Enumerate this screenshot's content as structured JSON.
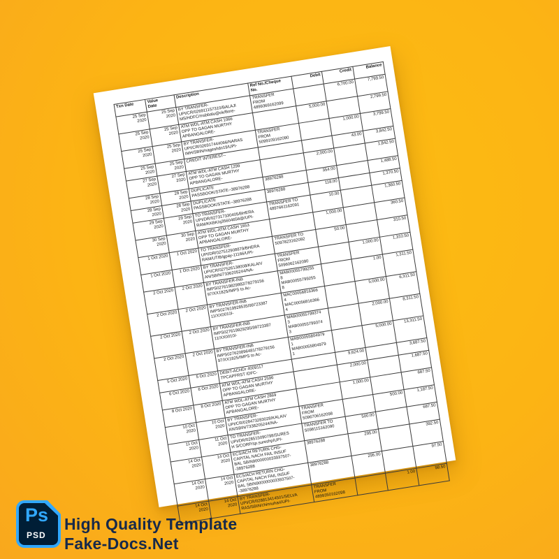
{
  "background": {
    "center_color": "#FDBD12",
    "edge_color": "#F9A81D"
  },
  "paper": {
    "rotation_deg": -9
  },
  "table": {
    "columns": [
      {
        "key": "txn_date",
        "label": "Txn Date",
        "header_align": "left",
        "cell_align": "right"
      },
      {
        "key": "value_date",
        "label": "Value\nDate",
        "header_align": "left",
        "cell_align": "right"
      },
      {
        "key": "description",
        "label": "Description",
        "header_align": "left",
        "cell_align": "left"
      },
      {
        "key": "ref_no",
        "label": "Ref No./Cheque\nNo.",
        "header_align": "left",
        "cell_align": "left"
      },
      {
        "key": "debit",
        "label": "Debit",
        "header_align": "right",
        "cell_align": "right"
      },
      {
        "key": "credit",
        "label": "Credit",
        "header_align": "right",
        "cell_align": "right"
      },
      {
        "key": "balance",
        "label": "Balance",
        "header_align": "right",
        "cell_align": "right"
      }
    ],
    "rows": [
      {
        "txn_date": "25 Sep\n2020",
        "value_date": "25 Sep\n2020",
        "description": "BY TRANSFER-\nUPI/CR/026911157310/BALAJI\nMS/HDFC/msbbalu@ok/Bore-",
        "ref_no": "TRANSFER\nFROM\n4899369162099",
        "debit": "",
        "credit": "6,700.00",
        "balance": "7,799.50"
      },
      {
        "txn_date": "25 Sep\n2020",
        "value_date": "25 Sep\n2020",
        "description": "ATM WDL-ATM CASH 1066\nOPP TO GAGAN MURTHY\nAPBANGALORE-",
        "ref_no": "",
        "debit": "5,000.00",
        "credit": "",
        "balance": "2,799.50"
      },
      {
        "txn_date": "25 Sep\n2020",
        "value_date": "25 Sep\n2020",
        "description": "BY TRANSFER-\nUPI/CR/026917444066/NARAS\nIMH/SBIN/nageshdn19/UPI-",
        "ref_no": "TRANSFER\nFROM\n5099109162090",
        "debit": "",
        "credit": "1,000.00",
        "balance": "3,799.50"
      },
      {
        "txn_date": "25 Sep\n2020",
        "value_date": "25 Sep\n2020",
        "description": "CREDIT INTEREST--",
        "ref_no": "",
        "debit": "",
        "credit": "43.00",
        "balance": "3,842.50"
      },
      {
        "txn_date": "27 Sep\n2020",
        "value_date": "27 Sep\n2020",
        "description": "ATM WDL-ATM CASH 1299\nOPP TO GAGAN MURTHY\nAPBANGALORE-",
        "ref_no": "",
        "debit": "2,000.00",
        "credit": "",
        "balance": "1,842.50"
      },
      {
        "txn_date": "28 Sep\n2020",
        "value_date": "28 Sep\n2020",
        "description": "DUPLICATE\nPASSBOOK/STATE--38976288",
        "ref_no": "38976288",
        "debit": "354.00",
        "credit": "",
        "balance": "1,488.50"
      },
      {
        "txn_date": "28 Sep\n2020",
        "value_date": "28 Sep\n2020",
        "description": "DUPLICATE\nPASSBOOK/STATE--38976288",
        "ref_no": "38976288",
        "debit": "118.00",
        "credit": "",
        "balance": "1,370.50"
      },
      {
        "txn_date": "29 Sep\n2020",
        "value_date": "29 Sep\n2020",
        "description": "TO TRANSFER-\nUPI/DR/027317330405/BHERA\nRAM/KKBK/q35604656@/UPI-",
        "ref_no": "TRANSFER TO\n4897661162091",
        "debit": "10.00",
        "credit": "",
        "balance": "1,360.50"
      },
      {
        "txn_date": "30 Sep\n2020",
        "value_date": "30 Sep\n2020",
        "description": "ATM WDL-ATM CASH 1653\nOPP TO GAGAN MURTHY\nAPBANGALORE-",
        "ref_no": "",
        "debit": "1,000.00",
        "credit": "",
        "balance": "360.50"
      },
      {
        "txn_date": "1 Oct 2020",
        "value_date": "1 Oct 2020",
        "description": "TO TRANSFER-\nUPI/DR/027512908879/BHERA\nRAM/UTIB/gpay-11166/UPI-",
        "ref_no": "TRANSFER TO\n5097823162092",
        "debit": "50.00",
        "credit": "",
        "balance": "310.50"
      },
      {
        "txn_date": "1 Oct 2020",
        "value_date": "1 Oct 2020",
        "description": "BY TRANSFER-\nUPI/CR/027526138008/KALAIV\nAN/SBIN/7336205244/NA-",
        "ref_no": "TRANSFER\nFROM\n5096062162090",
        "debit": "",
        "credit": "1,000.00",
        "balance": "1,310.50"
      },
      {
        "txn_date": "2 Oct 2020",
        "value_date": "2 Oct 2020",
        "description": "BY TRANSFER-INB\nIMPS027619829982/78279156\n97/XX1825/IMPS to Ac-",
        "ref_no": "MAB00055799255\n8\nMAB00055799255\n8",
        "debit": "",
        "credit": "1.00",
        "balance": "1,311.50"
      },
      {
        "txn_date": "2 Oct 2020",
        "value_date": "2 Oct 2020",
        "description": "BY TRANSFER-INB\nIMPS027619928535/99723387\n11/XX0010/-",
        "ref_no": "MAC00056816366\n4\nMAC00056816366\n4",
        "debit": "",
        "credit": "5,000.00",
        "balance": "6,311.50"
      },
      {
        "txn_date": "2 Oct 2020",
        "value_date": "2 Oct 2020",
        "description": "BY TRANSFER-INB\nIMPS027619929295/99723387\n11/XX0010/-",
        "ref_no": "MAB00055799374\n3\nMAB00055799374\n3",
        "debit": "",
        "credit": "2,000.00",
        "balance": "8,311.50"
      },
      {
        "txn_date": "2 Oct 2020",
        "value_date": "2 Oct 2020",
        "description": "BY TRANSFER-INB\nIMPS027620896481/78279156\n97/XX1825/IMPS to Ac-",
        "ref_no": "MAB00055804979\n1\nMAB00055804979\n1",
        "debit": "",
        "credit": "5,000.00",
        "balance": "13,311.50"
      },
      {
        "txn_date": "5 Oct 2020",
        "value_date": "5 Oct 2020",
        "description": "DEBIT-ACHDr 4009117\nTPCAPFRST IDFC-",
        "ref_no": "",
        "debit": "9,624.00",
        "credit": "",
        "balance": "3,687.50"
      },
      {
        "txn_date": "6 Oct 2020",
        "value_date": "6 Oct 2020",
        "description": "ATM WDL-ATM CASH 2596\nOPP TO GAGAN MURTHY\nAPBANGALORE-",
        "ref_no": "",
        "debit": "2,000.00",
        "credit": "",
        "balance": "1,687.50"
      },
      {
        "txn_date": "8 Oct 2020",
        "value_date": "8 Oct 2020",
        "description": "ATM WDL-ATM CASH 2869\nOPP TO GAGAN MURTHY\nAPBANGALORE-",
        "ref_no": "",
        "debit": "1,000.00",
        "credit": "",
        "balance": "687.50"
      },
      {
        "txn_date": "10 Oct\n2020",
        "value_date": "10 Oct\n2020",
        "description": "BY TRANSFER-\nUPI/CR/028473283028/KALAIV\nAN/SBIN/7338205244/NA-",
        "ref_no": "TRANSFER\nFROM\n5096706162098",
        "debit": "",
        "credit": "500.00",
        "balance": "1,187.50"
      },
      {
        "txn_date": "11 Oct\n2020",
        "value_date": "11 Oct\n2020",
        "description": "TO TRANSFER-\nUPI/DR/028515090798/SURES\nH S/CORP/sp.sureshp/UPI-",
        "ref_no": "TRANSFER TO\n5098115162090",
        "debit": "500.00",
        "credit": "",
        "balance": "687.50"
      },
      {
        "txn_date": "14 Oct\n2020",
        "value_date": "14 Oct\n2020",
        "description": "ECS/ACH RETURN CHG-\nCAPITAL NACH FAIL INSUF\nBAL SBIN9000000033937507-\n-38976288",
        "ref_no": "38976288",
        "debit": "295.00",
        "credit": "",
        "balance": "392.50"
      },
      {
        "txn_date": "14 Oct\n2020",
        "value_date": "14 Oct\n2020",
        "description": "ECS/ACH RETURN CHG-\nCAPITAL NACH FAIL INSUF\nBAL SBIN9000000033937507-\n-38976288",
        "ref_no": "38976288",
        "debit": "295.00",
        "credit": "",
        "balance": "97.50"
      },
      {
        "txn_date": "14 Oct\n2020",
        "value_date": "14 Oct\n2020",
        "description": "BY TRANSFER-\nUPI/CR/028813414501/SELVA\nRAS/SBIN/chinnuhari/UPI-",
        "ref_no": "TRANSFER\nFROM\n4899350162098",
        "debit": "",
        "credit": "1.00",
        "balance": "98.50"
      }
    ]
  },
  "footer": {
    "badge": {
      "app_label": "Ps",
      "format_label": "PSD",
      "accent_blue": "#31A8FF",
      "dark_navy": "#001E36"
    },
    "title": "High Quality Template",
    "subtitle": "Fake-Docs.Net",
    "text_color": "#16294B"
  }
}
